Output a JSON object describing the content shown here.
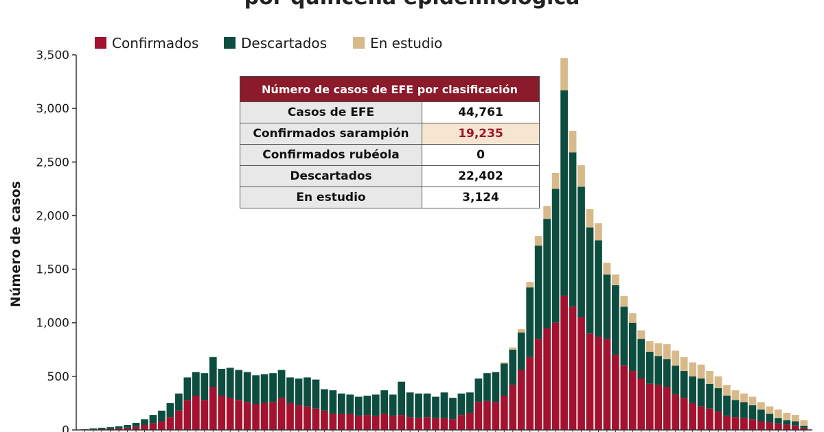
{
  "colors": {
    "confirmados": "#a3122e",
    "descartados": "#0d4d3f",
    "en_estudio": "#d8b98a",
    "table_header": "#8b1a2a"
  },
  "page": {
    "title_partial": "por quincena epidemiológica"
  },
  "table": {
    "header": "Número de casos de EFE por clasificación",
    "rows": [
      {
        "label": "Casos de EFE",
        "value": "44,761",
        "highlight": false
      },
      {
        "label": "Confirmados sarampión",
        "value": "19,235",
        "highlight": true
      },
      {
        "label": "Confirmados rubéola",
        "value": "0",
        "highlight": false
      },
      {
        "label": "Descartados",
        "value": "22,402",
        "highlight": false
      },
      {
        "label": "En estudio",
        "value": "3,124",
        "highlight": false
      }
    ]
  },
  "chart_data": {
    "type": "bar",
    "stacked": true,
    "title": "",
    "xlabel": "",
    "ylabel": "Número de casos",
    "ylim": [
      0,
      3500
    ],
    "yticks": [
      0,
      500,
      1000,
      1500,
      2000,
      2500,
      3000,
      3500
    ],
    "ytick_labels": [
      "0",
      "500",
      "1,000",
      "1,500",
      "2,000",
      "2,500",
      "3,000",
      "3,500"
    ],
    "grid": false,
    "legend_position": "top-left",
    "legend": [
      "Confirmados",
      "Descartados",
      "En estudio"
    ],
    "series": [
      {
        "name": "Confirmados",
        "values": [
          2,
          5,
          8,
          10,
          15,
          20,
          30,
          45,
          60,
          80,
          120,
          180,
          280,
          320,
          280,
          400,
          320,
          300,
          280,
          260,
          240,
          250,
          260,
          300,
          250,
          230,
          220,
          200,
          180,
          150,
          150,
          150,
          130,
          140,
          130,
          150,
          130,
          140,
          120,
          110,
          120,
          110,
          110,
          100,
          140,
          160,
          260,
          270,
          260,
          320,
          420,
          560,
          680,
          850,
          950,
          1000,
          1250,
          1150,
          1050,
          900,
          870,
          850,
          700,
          600,
          550,
          480,
          430,
          420,
          400,
          330,
          300,
          250,
          220,
          200,
          170,
          130,
          120,
          110,
          100,
          80,
          70,
          60,
          50,
          40,
          20
        ]
      },
      {
        "name": "Descartados",
        "values": [
          5,
          10,
          12,
          15,
          20,
          25,
          35,
          55,
          80,
          100,
          130,
          160,
          210,
          220,
          250,
          280,
          250,
          280,
          280,
          280,
          270,
          270,
          270,
          260,
          240,
          250,
          270,
          270,
          200,
          220,
          190,
          180,
          180,
          180,
          200,
          220,
          200,
          310,
          230,
          230,
          220,
          200,
          240,
          200,
          200,
          190,
          220,
          260,
          280,
          300,
          330,
          350,
          650,
          870,
          1020,
          1250,
          1920,
          1440,
          1220,
          990,
          900,
          600,
          650,
          550,
          450,
          370,
          300,
          270,
          260,
          270,
          250,
          250,
          260,
          230,
          220,
          190,
          160,
          150,
          130,
          110,
          80,
          50,
          40,
          40,
          20
        ]
      },
      {
        "name": "En estudio",
        "values": [
          0,
          0,
          0,
          0,
          0,
          0,
          0,
          0,
          0,
          0,
          0,
          0,
          0,
          0,
          0,
          0,
          0,
          0,
          0,
          0,
          0,
          0,
          0,
          0,
          0,
          0,
          0,
          0,
          0,
          0,
          0,
          0,
          0,
          0,
          0,
          0,
          0,
          0,
          0,
          0,
          0,
          0,
          0,
          0,
          0,
          0,
          0,
          0,
          0,
          10,
          20,
          30,
          50,
          90,
          120,
          150,
          300,
          200,
          200,
          170,
          160,
          110,
          100,
          100,
          90,
          80,
          100,
          120,
          140,
          140,
          130,
          130,
          130,
          120,
          110,
          100,
          90,
          80,
          80,
          70,
          70,
          80,
          70,
          60,
          50
        ]
      }
    ]
  }
}
